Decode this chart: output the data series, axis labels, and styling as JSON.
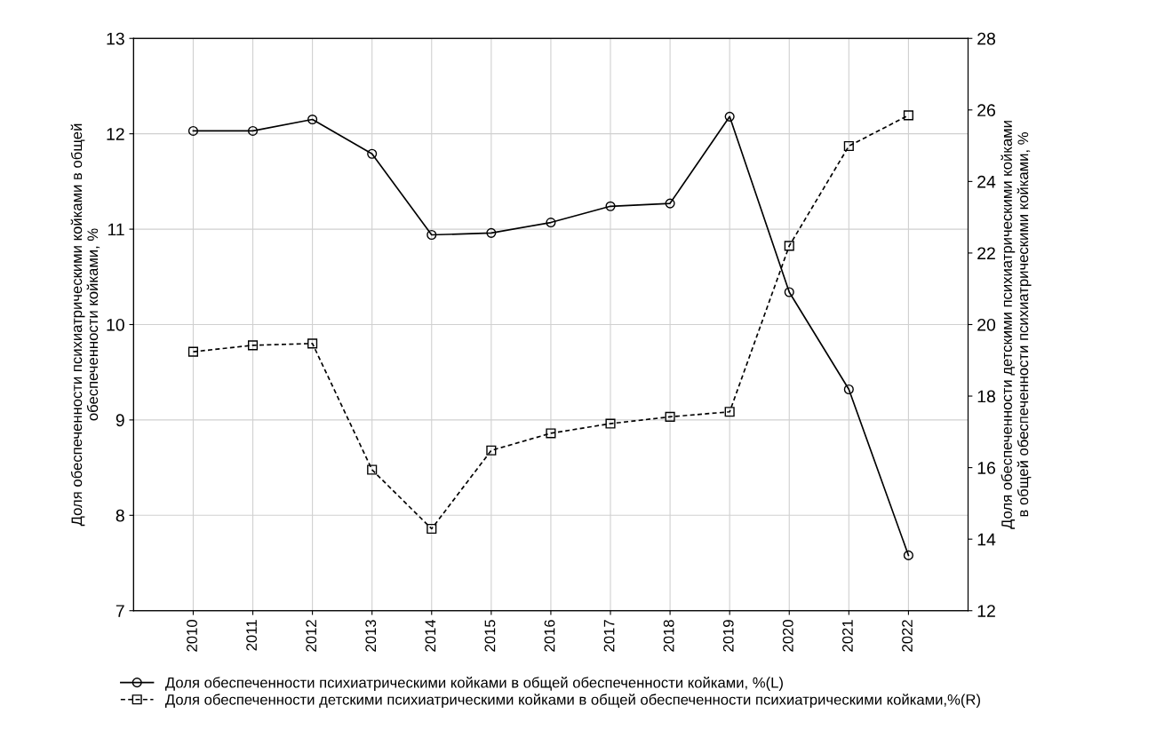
{
  "chart_data": {
    "type": "line",
    "ylabel": "Доля обеспеченности психиатрическими койками в общей\nобеспеченности койками, %",
    "y2label": "Доля обеспеченности детскими психиатрическими койками\nв общей обеспеченности психиатрическими койками, %",
    "categories": [
      "2010",
      "2011",
      "2012",
      "2013",
      "2014",
      "2015",
      "2016",
      "2017",
      "2018",
      "2019",
      "2020",
      "2021",
      "2022"
    ],
    "series": [
      {
        "name": "Доля обеспеченности психиатрическими койками в общей обеспеченности койками, %(L)",
        "color": "#000000",
        "marker": "circle",
        "line_style": "solid",
        "values": [
          12.03,
          12.03,
          12.15,
          11.79,
          10.94,
          10.96,
          11.07,
          11.24,
          11.27,
          12.18,
          10.34,
          9.32,
          7.58
        ]
      },
      {
        "name": "Доля обеспеченности детскими психиатрическими койками в общей обеспеченности психиатрическими койками,%(R)",
        "color": "#000000",
        "marker": "square",
        "line_style": "dashed",
        "axis": "y2",
        "values": [
          19.24,
          19.42,
          19.47,
          15.94,
          14.29,
          16.48,
          16.96,
          17.23,
          17.42,
          17.56,
          22.2,
          24.99,
          25.85
        ]
      }
    ],
    "ylim": [
      7,
      13
    ],
    "yticks": [
      7,
      8,
      9,
      10,
      11,
      12,
      13
    ],
    "y2lim": [
      12,
      28
    ],
    "y2ticks": [
      12,
      14,
      16,
      18,
      20,
      22,
      24,
      26,
      28
    ],
    "grid": true,
    "legend": "bottom"
  }
}
